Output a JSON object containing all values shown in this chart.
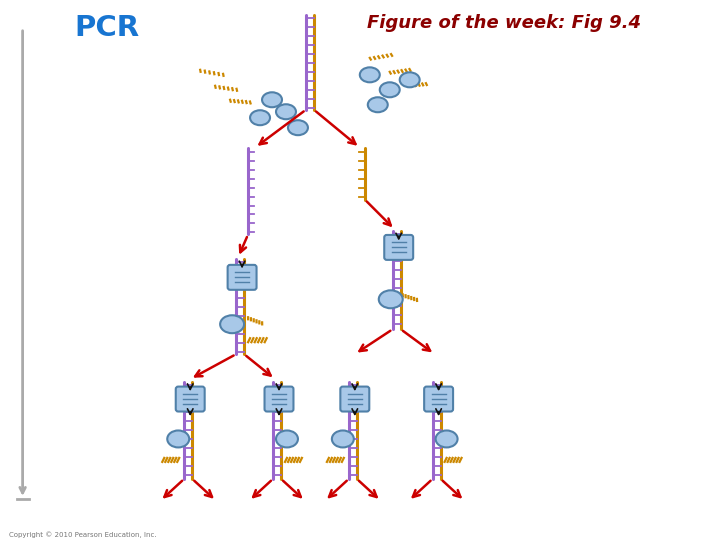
{
  "title": "Figure of the week: Fig 9.4",
  "title_color": "#8B0000",
  "pcr_label": "PCR",
  "pcr_color": "#1875D1",
  "copyright": "Copyright © 2010 Pearson Education, Inc.",
  "bg_color": "#FFFFFF",
  "dna_purple": "#9966CC",
  "dna_gold": "#CC8800",
  "primer_orange": "#CC8800",
  "arrow_red": "#CC0000",
  "arrow_black": "#111111",
  "arrow_gray": "#AAAAAA",
  "blob_blue": "#A8C8E8",
  "blob_edge": "#5080A8"
}
